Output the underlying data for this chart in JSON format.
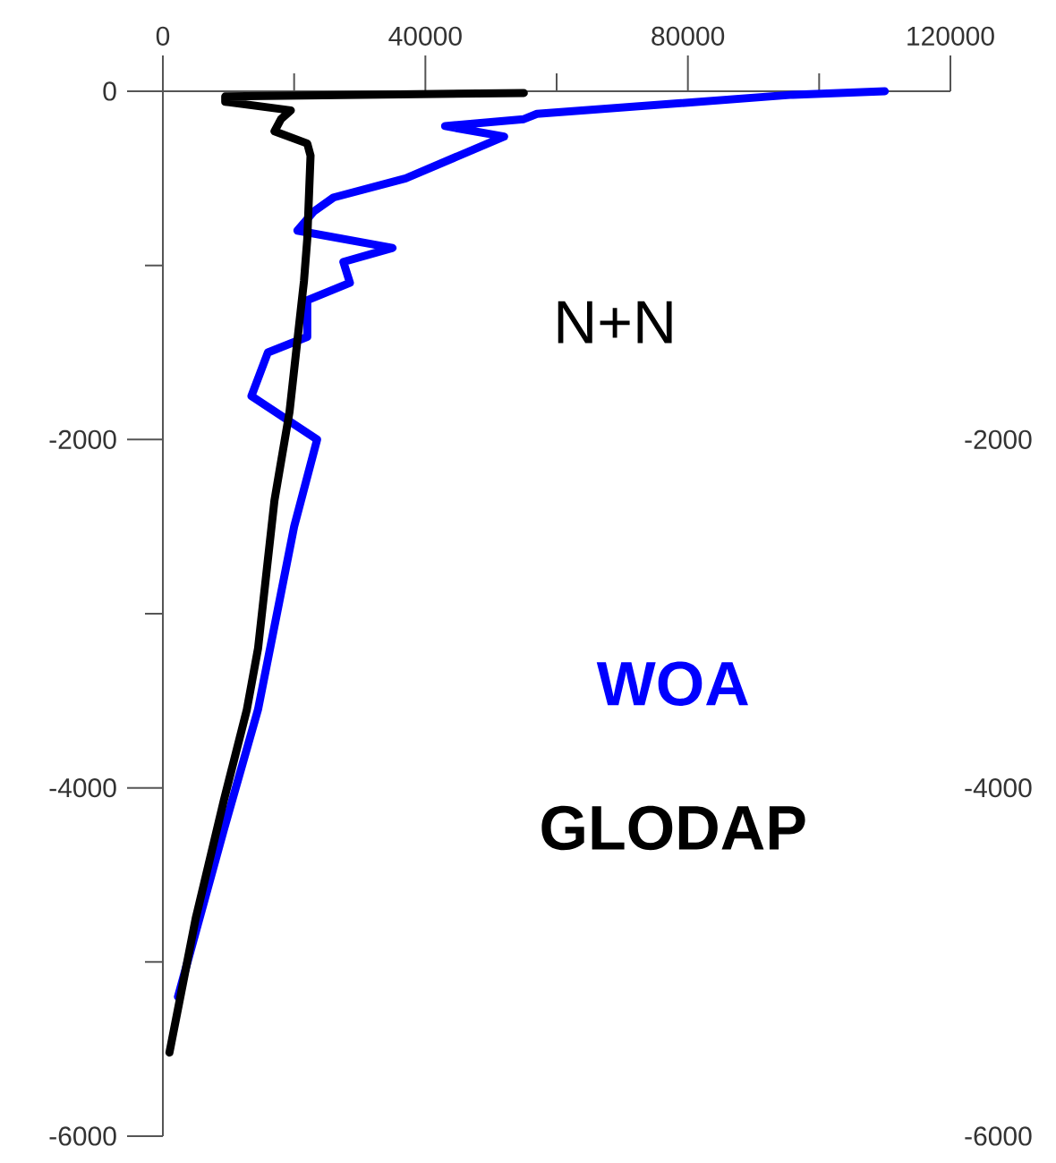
{
  "chart_data": {
    "type": "line",
    "title": "N+N",
    "xlim": [
      0,
      120000
    ],
    "ylim": [
      -6000,
      0
    ],
    "xticks": [
      0,
      {
        "value": 20000,
        "label": null
      },
      40000,
      {
        "value": 60000,
        "label": null
      },
      80000,
      {
        "value": 100000,
        "label": null
      },
      120000
    ],
    "yticks": [
      -6000,
      {
        "value": -5000,
        "label": null
      },
      -4000,
      {
        "value": -3000,
        "label": null
      },
      -2000,
      {
        "value": -1000,
        "label": null
      },
      0
    ],
    "y2lim": [
      -6000,
      0
    ],
    "y2ticks": [
      -6000,
      -4000,
      -2000
    ],
    "legend": "right",
    "series": [
      {
        "name": "WOA",
        "color": "#0000ff",
        "x": [
          110000,
          96000,
          57000,
          55000,
          43000,
          52000,
          37000,
          26000,
          23000,
          20500,
          35000,
          27500,
          28500,
          22000,
          22000,
          16000,
          13500,
          23500,
          20000,
          14500,
          9300,
          2300
        ],
        "values": [
          0,
          -20,
          -130,
          -160,
          -200,
          -260,
          -500,
          -610,
          -690,
          -800,
          -900,
          -980,
          -1100,
          -1200,
          -1410,
          -1500,
          -1750,
          -2000,
          -2500,
          -3550,
          -4240,
          -5200
        ]
      },
      {
        "name": "GLODAP",
        "color": "#000000",
        "x": [
          55000,
          9500,
          9500,
          19500,
          18000,
          17000,
          22000,
          22500,
          22000,
          21500,
          20500,
          19300,
          17000,
          14500,
          12800,
          9300,
          5000,
          1000
        ],
        "values": [
          -10,
          -30,
          -60,
          -110,
          -160,
          -230,
          -300,
          -370,
          -850,
          -1090,
          -1430,
          -1840,
          -2350,
          -3200,
          -3550,
          -4070,
          -4750,
          -5520
        ]
      }
    ]
  }
}
